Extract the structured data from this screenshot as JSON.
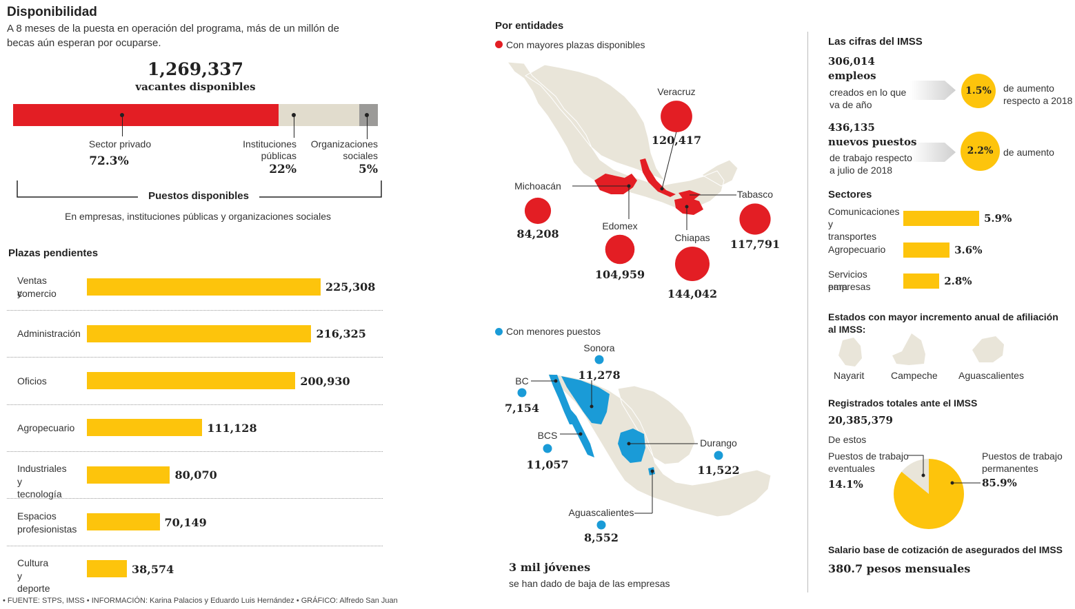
{
  "colors": {
    "red": "#e31e24",
    "beige": "#e1dccd",
    "gray": "#9b9a98",
    "yellow": "#fdc40c",
    "blue": "#1a9bd7",
    "map_base": "#e9e5d9"
  },
  "header": {
    "title": "Disponibilidad",
    "subtitle_line1": "A 8 meses de la puesta en operación del programa, más de un millón de",
    "subtitle_line2": "becas aún esperan por ocuparse."
  },
  "vacancies": {
    "total": "1,269,337",
    "total_label": "vacantes disponibles",
    "segments": [
      {
        "label_lines": [
          "Sector privado"
        ],
        "value": 72.3,
        "value_text": "72.3%",
        "color": "#e31e24"
      },
      {
        "label_lines": [
          "Instituciones",
          "públicas"
        ],
        "value": 22,
        "value_text": "22%",
        "color": "#e1dccd"
      },
      {
        "label_lines": [
          "Organizaciones",
          "sociales"
        ],
        "value": 5,
        "value_text": "5%",
        "color": "#9b9a98"
      }
    ],
    "bracket_label": "Puestos disponibles",
    "bracket_sub": "En empresas, instituciones públicas y organizaciones sociales"
  },
  "pending": {
    "title": "Plazas pendientes",
    "rows": [
      {
        "label_lines": [
          "Ventas y",
          "comercio"
        ],
        "value": 225308,
        "value_text": "225,308"
      },
      {
        "label_lines": [
          "Administración"
        ],
        "value": 216325,
        "value_text": "216,325"
      },
      {
        "label_lines": [
          "Oficios"
        ],
        "value": 200930,
        "value_text": "200,930"
      },
      {
        "label_lines": [
          "Agropecuario"
        ],
        "value": 111128,
        "value_text": "111,128"
      },
      {
        "label_lines": [
          "Industriales",
          "y tecnología"
        ],
        "value": 80070,
        "value_text": "80,070"
      },
      {
        "label_lines": [
          "Espacios",
          "profesionistas"
        ],
        "value": 70149,
        "value_text": "70,149"
      },
      {
        "label_lines": [
          "Cultura",
          "y deporte"
        ],
        "value": 38574,
        "value_text": "38,574"
      }
    ]
  },
  "states": {
    "title": "Por entidades",
    "top_legend": "Con mayores plazas disponibles",
    "top": [
      {
        "name": "Veracruz",
        "value": 120417,
        "value_text": "120,417"
      },
      {
        "name": "Michoacán",
        "value": 84208,
        "value_text": "84,208"
      },
      {
        "name": "Edomex",
        "value": 104959,
        "value_text": "104,959"
      },
      {
        "name": "Chiapas",
        "value": 144042,
        "value_text": "144,042"
      },
      {
        "name": "Tabasco",
        "value": 117791,
        "value_text": "117,791"
      }
    ],
    "bottom_legend": "Con menores puestos",
    "bottom": [
      {
        "name": "Sonora",
        "value": 11278,
        "value_text": "11,278"
      },
      {
        "name": "BC",
        "value": 7154,
        "value_text": "7,154"
      },
      {
        "name": "BCS",
        "value": 11057,
        "value_text": "11,057"
      },
      {
        "name": "Durango",
        "value": 11522,
        "value_text": "11,522"
      },
      {
        "name": "Aguascalientes",
        "value": 8552,
        "value_text": "8,552"
      }
    ],
    "dropouts": "3 mil jóvenes",
    "dropouts_sub": "se han dado de baja de las empresas"
  },
  "imss": {
    "title": "Las cifras del IMSS",
    "stat1": {
      "value": "306,014",
      "unit": "empleos",
      "desc_lines": [
        "creados en lo que",
        "va de año"
      ],
      "pct": "1.5%",
      "pct_desc_lines": [
        "de aumento",
        "respecto a 2018"
      ]
    },
    "stat2": {
      "value": "436,135",
      "unit": "nuevos puestos",
      "desc_lines": [
        "de trabajo respecto",
        "a julio de 2018"
      ],
      "pct": "2.2%",
      "pct_desc_lines": [
        "de aumento"
      ]
    },
    "sectors": {
      "title": "Sectores",
      "rows": [
        {
          "label_lines": [
            "Comunicaciones",
            "y transportes"
          ],
          "value": 5.9,
          "value_text": "5.9%"
        },
        {
          "label_lines": [
            "Agropecuario"
          ],
          "value": 3.6,
          "value_text": "3.6%"
        },
        {
          "label_lines": [
            "Servicios para",
            "empresas"
          ],
          "value": 2.8,
          "value_text": "2.8%"
        }
      ]
    },
    "states_title_line1": "Estados con mayor incremento anual de afiliación",
    "states_title_line2": "al IMSS:",
    "states": [
      "Nayarit",
      "Campeche",
      "Aguascalientes"
    ],
    "registered_title": "Registrados totales ante el IMSS",
    "registered_value": "20,385,379",
    "of_these": "De estos",
    "pie": [
      {
        "label_lines": [
          "Puestos de trabajo",
          "eventuales"
        ],
        "value": 14.1,
        "value_text": "14.1%",
        "color": "#e9e5d9"
      },
      {
        "label_lines": [
          "Puestos de trabajo",
          "permanentes"
        ],
        "value": 85.9,
        "value_text": "85.9%",
        "color": "#fdc40c"
      }
    ],
    "salary_title": "Salario base de cotización de asegurados del IMSS",
    "salary_value": "380.7 pesos mensuales"
  },
  "footer": "• FUENTE: STPS, IMSS • INFORMACIÓN: Karina Palacios y Eduardo Luis Hernández • GRÁFICO: Alfredo San Juan",
  "chart_data": [
    {
      "type": "bar",
      "title": "1,269,337 vacantes disponibles",
      "categories": [
        "Sector privado",
        "Instituciones públicas",
        "Organizaciones sociales"
      ],
      "values": [
        72.3,
        22,
        5
      ],
      "unit": "%"
    },
    {
      "type": "bar",
      "title": "Plazas pendientes",
      "categories": [
        "Ventas y comercio",
        "Administración",
        "Oficios",
        "Agropecuario",
        "Industriales y tecnología",
        "Espacios profesionistas",
        "Cultura y deporte"
      ],
      "values": [
        225308,
        216325,
        200930,
        111128,
        80070,
        70149,
        38574
      ]
    },
    {
      "type": "bar",
      "title": "Sectores",
      "categories": [
        "Comunicaciones y transportes",
        "Agropecuario",
        "Servicios para empresas"
      ],
      "values": [
        5.9,
        3.6,
        2.8
      ],
      "unit": "%"
    },
    {
      "type": "pie",
      "categories": [
        "Puestos de trabajo eventuales",
        "Puestos de trabajo permanentes"
      ],
      "values": [
        14.1,
        85.9
      ],
      "unit": "%"
    }
  ]
}
